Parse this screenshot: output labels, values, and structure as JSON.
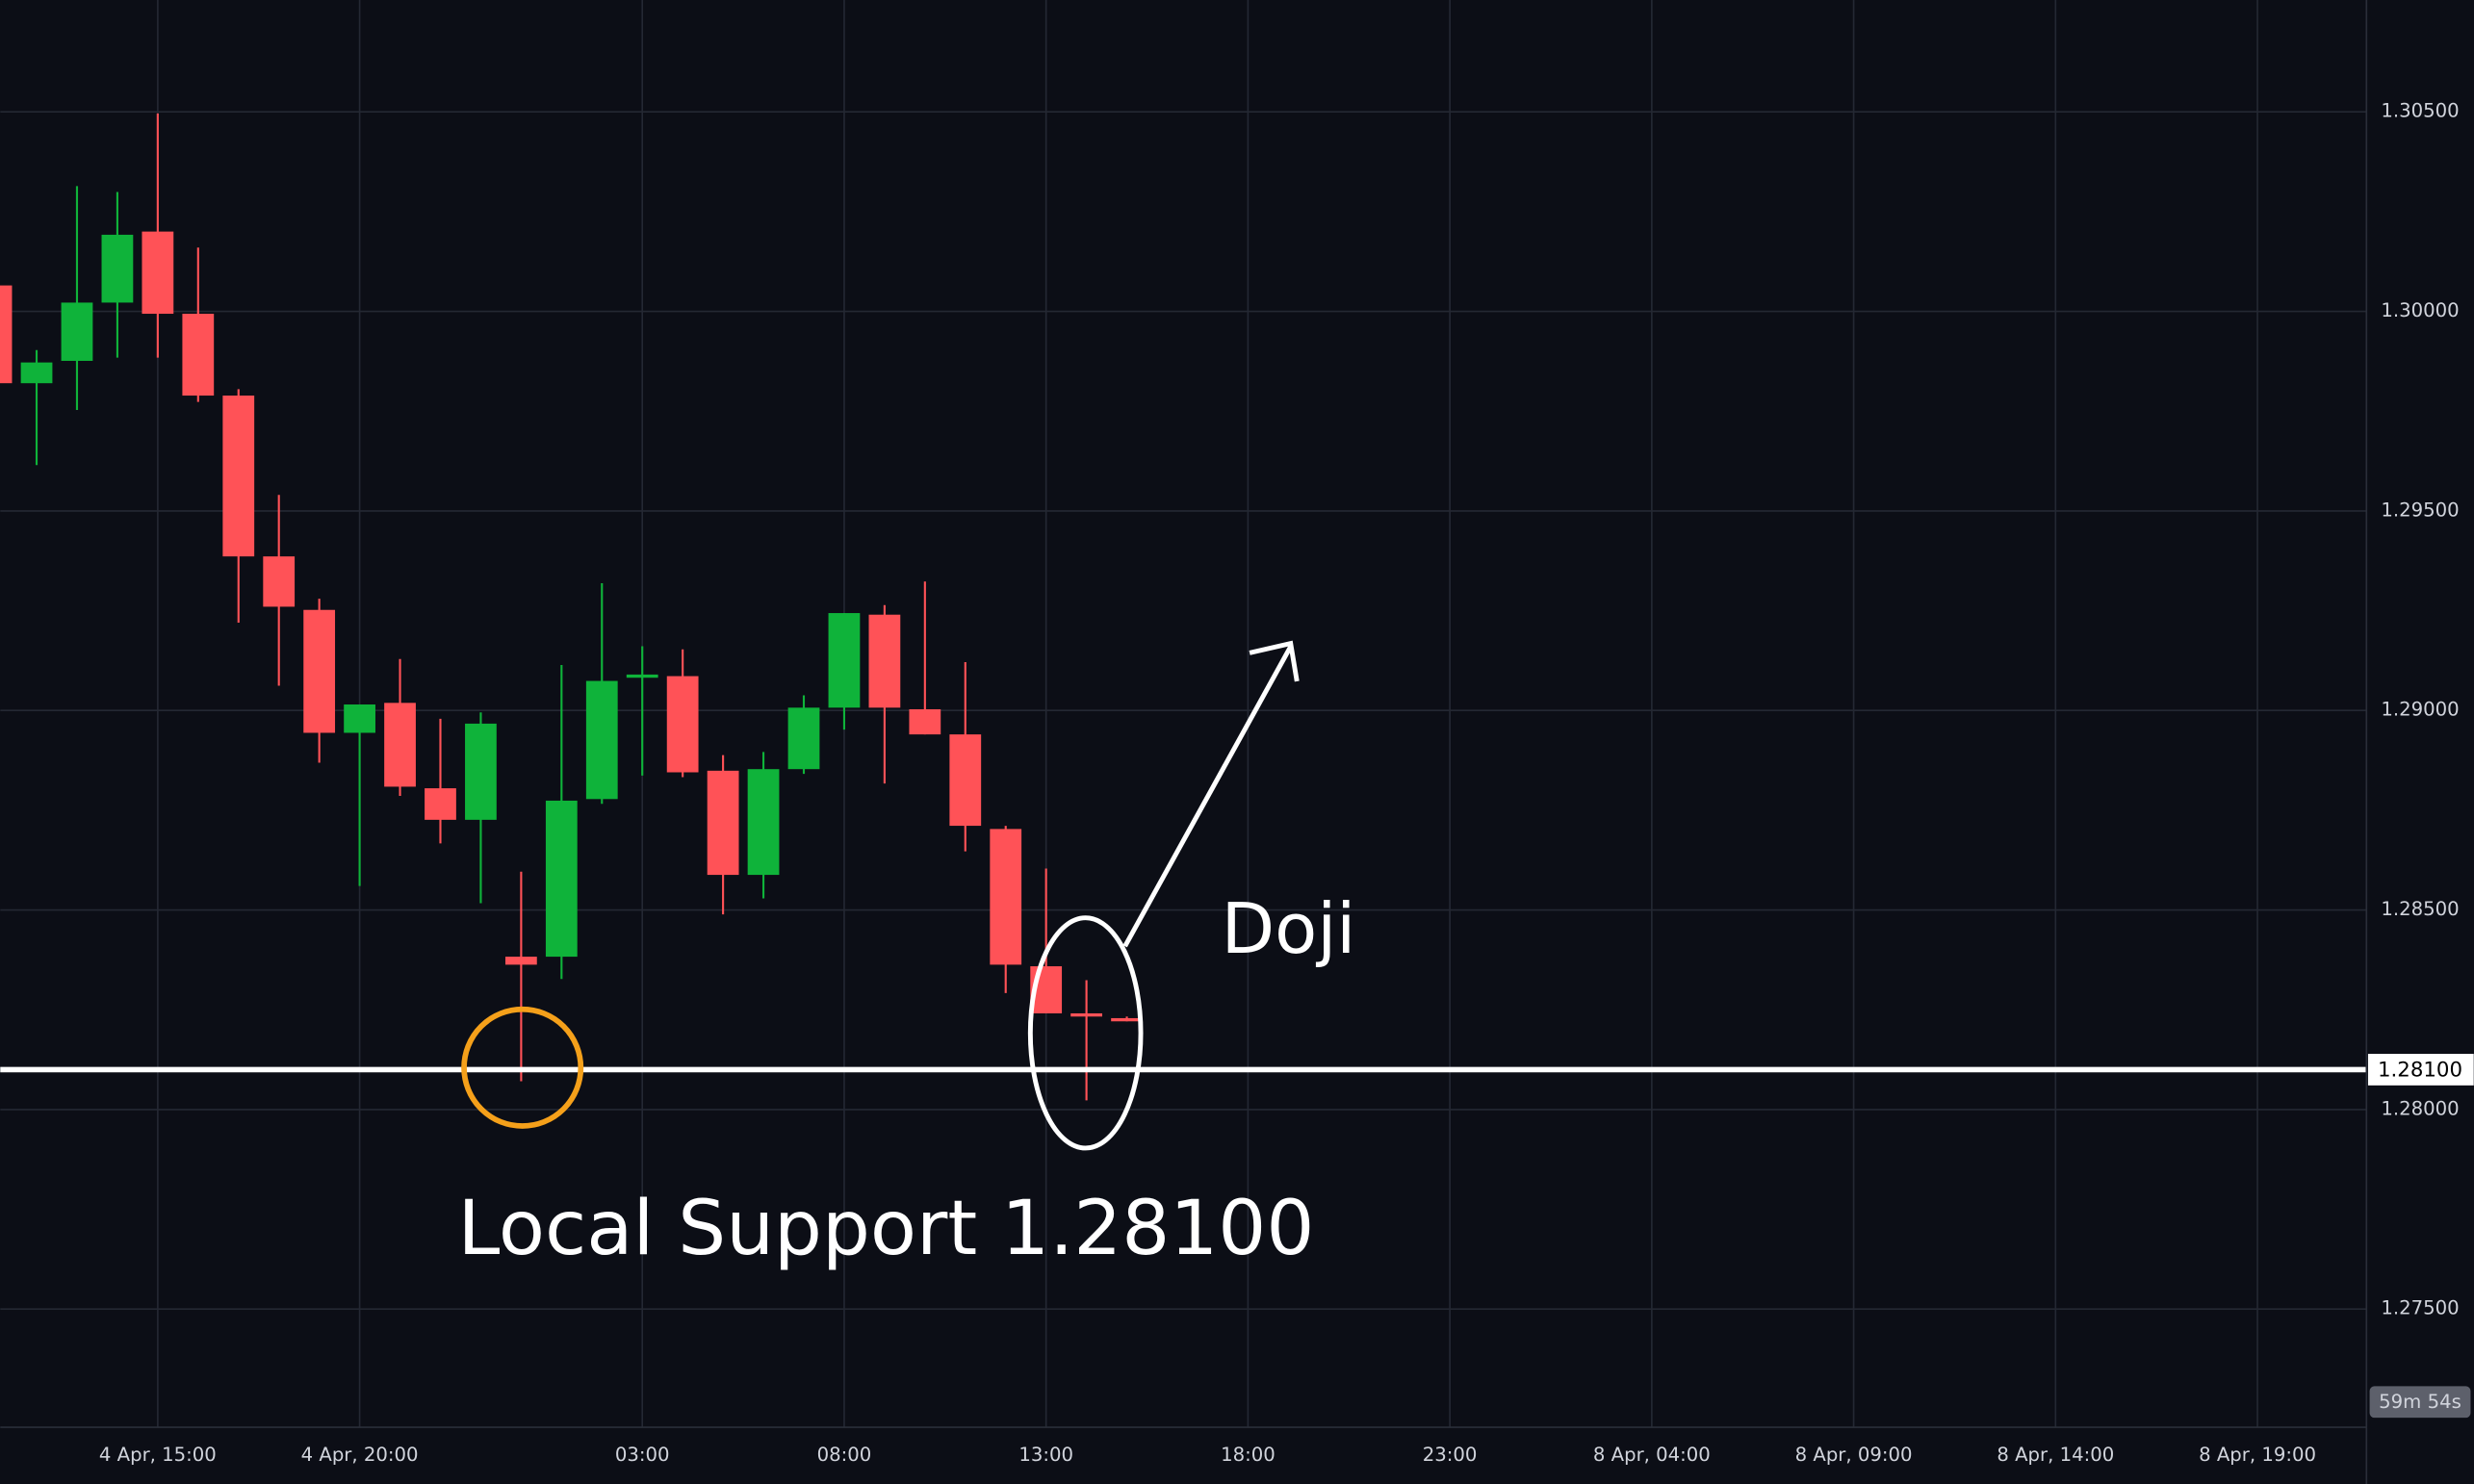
{
  "chart_data": {
    "type": "candlestick",
    "up_color": "#0fb33a",
    "down_color": "#ff5257",
    "grid": true,
    "xlim": [
      0.1,
      58.7
    ],
    "xticks": [
      {
        "value": 4,
        "label": "4 Apr, 15:00"
      },
      {
        "value": 9,
        "label": "4 Apr, 20:00"
      },
      {
        "value": 16,
        "label": "03:00"
      },
      {
        "value": 21,
        "label": "08:00"
      },
      {
        "value": 26,
        "label": "13:00"
      },
      {
        "value": 31,
        "label": "18:00"
      },
      {
        "value": 36,
        "label": "23:00"
      },
      {
        "value": 41,
        "label": "8 Apr, 04:00"
      },
      {
        "value": 46,
        "label": "8 Apr, 09:00"
      },
      {
        "value": 51,
        "label": "8 Apr, 14:00"
      },
      {
        "value": 56,
        "label": "8 Apr, 19:00"
      }
    ],
    "ylim": [
      1.272,
      1.308
    ],
    "yticks": [
      {
        "value": 1.275,
        "label": "1.27500"
      },
      {
        "value": 1.28,
        "label": "1.28000"
      },
      {
        "value": 1.285,
        "label": "1.28500"
      },
      {
        "value": 1.29,
        "label": "1.29000"
      },
      {
        "value": 1.295,
        "label": "1.29500"
      },
      {
        "value": 1.3,
        "label": "1.30000"
      },
      {
        "value": 1.305,
        "label": "1.30500"
      }
    ],
    "open": [
      1.30065,
      1.2982,
      1.29876,
      1.30022,
      1.302,
      1.29994,
      1.29789,
      1.29386,
      1.29252,
      1.28944,
      1.29019,
      1.28805,
      1.28726,
      1.28383,
      1.28383,
      1.28778,
      1.29082,
      1.29086,
      1.28849,
      1.28588,
      1.28853,
      1.29007,
      1.2924,
      1.29003,
      1.2894,
      1.28703,
      1.28359,
      1.28241,
      1.28229
    ],
    "high": [
      1.30065,
      1.29903,
      1.30314,
      1.30299,
      1.30496,
      1.3016,
      1.29805,
      1.2954,
      1.2928,
      1.29015,
      1.29129,
      1.28979,
      1.28995,
      1.28596,
      1.29114,
      1.29319,
      1.29161,
      1.29153,
      1.28888,
      1.28896,
      1.29038,
      1.29244,
      1.29264,
      1.29323,
      1.29121,
      1.28711,
      1.28604,
      1.28324,
      1.28233
    ],
    "low": [
      1.2982,
      1.29615,
      1.29753,
      1.29884,
      1.29884,
      1.29773,
      1.2922,
      1.29062,
      1.28869,
      1.2856,
      1.28786,
      1.28667,
      1.28517,
      1.28071,
      1.28327,
      1.28766,
      1.28837,
      1.28833,
      1.28489,
      1.28529,
      1.28841,
      1.28952,
      1.28817,
      1.2894,
      1.28647,
      1.28292,
      1.28241,
      1.28023,
      1.28221
    ],
    "close": [
      1.2982,
      1.29872,
      1.30022,
      1.30192,
      1.29994,
      1.29789,
      1.29386,
      1.2926,
      1.28944,
      1.29015,
      1.28809,
      1.28726,
      1.28967,
      1.28363,
      1.28774,
      1.29074,
      1.2909,
      1.28845,
      1.28588,
      1.28853,
      1.29007,
      1.29244,
      1.29007,
      1.2894,
      1.28711,
      1.28363,
      1.28241,
      1.28233,
      1.28221
    ],
    "support": {
      "value": 1.281,
      "label": "1.28100"
    },
    "countdown": "59m 54s",
    "annotations": {
      "pattern": "Doji",
      "support": "Local Support 1.28100"
    }
  }
}
